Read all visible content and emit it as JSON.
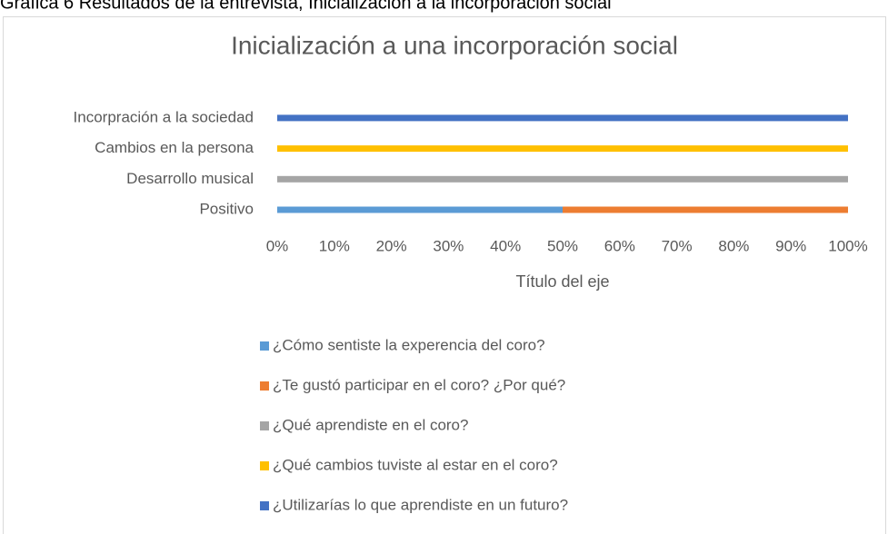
{
  "caption": "Gráfica 6 Resultados de la entrevista, Inicialización a la incorporación social",
  "chart_data": {
    "type": "stacked_barh",
    "title": "Inicialización a una incorporación social",
    "x_label": "Título del eje",
    "categories": [
      "Positivo",
      "Desarrollo musical",
      "Cambios en la persona",
      "Incorpración a la sociedad"
    ],
    "series": [
      {
        "name": "¿Cómo sentiste la experencia del coro?",
        "color": "#5b9bd5",
        "values": [
          50,
          0,
          0,
          0
        ]
      },
      {
        "name": "¿Te gustó participar en el coro? ¿Por qué?",
        "color": "#ed7d31",
        "values": [
          50,
          0,
          0,
          0
        ]
      },
      {
        "name": "¿Qué aprendiste en el coro?",
        "color": "#a5a5a5",
        "values": [
          0,
          100,
          0,
          0
        ]
      },
      {
        "name": "¿Qué cambios tuviste al estar en el coro?",
        "color": "#ffc000",
        "values": [
          0,
          0,
          100,
          0
        ]
      },
      {
        "name": "¿Utilizarías lo que aprendiste en un futuro?",
        "color": "#4472c4",
        "values": [
          0,
          0,
          0,
          100
        ]
      }
    ],
    "xlim": [
      0,
      100
    ],
    "xticks": [
      {
        "value": 0,
        "label": "0%"
      },
      {
        "value": 10,
        "label": "10%"
      },
      {
        "value": 20,
        "label": "20%"
      },
      {
        "value": 30,
        "label": "30%"
      },
      {
        "value": 40,
        "label": "40%"
      },
      {
        "value": 50,
        "label": "50%"
      },
      {
        "value": 60,
        "label": "60%"
      },
      {
        "value": 70,
        "label": "70%"
      },
      {
        "value": 80,
        "label": "80%"
      },
      {
        "value": 90,
        "label": "90%"
      },
      {
        "value": 100,
        "label": "100%"
      }
    ],
    "legend": "bottom"
  }
}
